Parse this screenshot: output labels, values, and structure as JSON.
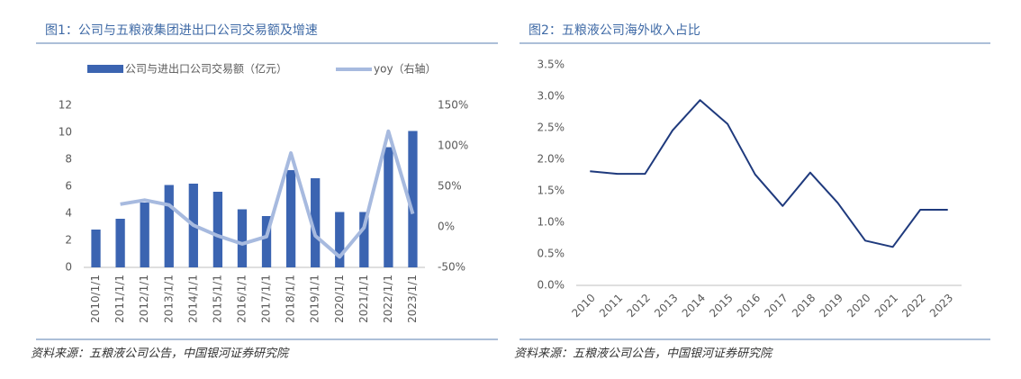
{
  "chart_data": [
    {
      "type": "bar",
      "title": "图1：公司与五粮液集团进出口公司交易额及增速",
      "categories": [
        "2010/1/1",
        "2011/1/1",
        "2012/1/1",
        "2013/1/1",
        "2014/1/1",
        "2015/1/1",
        "2016/1/1",
        "2017/1/1",
        "2018/1/1",
        "2019/1/1",
        "2020/1/1",
        "2021/1/1",
        "2022/1/1",
        "2023/1/1"
      ],
      "series": [
        {
          "name": "公司与进出口公司交易额（亿元）",
          "type": "bar",
          "color": "#3b64b1",
          "values": [
            2.8,
            3.6,
            4.8,
            6.1,
            6.2,
            5.6,
            4.3,
            3.8,
            7.2,
            6.6,
            4.1,
            4.1,
            8.9,
            10.1
          ]
        },
        {
          "name": "yoy（右轴）",
          "type": "line",
          "axis": "y2",
          "color": "#a7badf",
          "values": [
            null,
            28,
            33,
            27,
            2,
            -11,
            -21,
            -12,
            91,
            -11,
            -37,
            -1,
            118,
            16
          ]
        }
      ],
      "ylim": [
        0,
        12
      ],
      "yticks": [
        0,
        2,
        4,
        6,
        8,
        10,
        12
      ],
      "y2lim": [
        -50,
        150
      ],
      "y2ticks": [
        {
          "value": -50,
          "label": "-50%"
        },
        {
          "value": 0,
          "label": "0%"
        },
        {
          "value": 50,
          "label": "50%"
        },
        {
          "value": 100,
          "label": "100%"
        },
        {
          "value": 150,
          "label": "150%"
        }
      ],
      "source": "资料来源：五粮液公司公告，中国银河证券研究院"
    },
    {
      "type": "line",
      "title": "图2：五粮液公司海外收入占比",
      "categories": [
        "2010",
        "2011",
        "2012",
        "2013",
        "2014",
        "2015",
        "2016",
        "2017",
        "2018",
        "2019",
        "2020",
        "2021",
        "2022",
        "2023"
      ],
      "series": [
        {
          "type": "line",
          "color": "#1f3a7d",
          "values": [
            1.81,
            1.77,
            1.77,
            2.46,
            2.94,
            2.56,
            1.76,
            1.26,
            1.79,
            1.31,
            0.71,
            0.61,
            1.2,
            1.2
          ]
        }
      ],
      "ylim": [
        0,
        3.5
      ],
      "yticks": [
        {
          "value": 0,
          "label": "0.0%"
        },
        {
          "value": 0.5,
          "label": "0.5%"
        },
        {
          "value": 1,
          "label": "1.0%"
        },
        {
          "value": 1.5,
          "label": "1.5%"
        },
        {
          "value": 2,
          "label": "2.0%"
        },
        {
          "value": 2.5,
          "label": "2.5%"
        },
        {
          "value": 3,
          "label": "3.0%"
        },
        {
          "value": 3.5,
          "label": "3.5%"
        }
      ],
      "source": "资料来源：五粮液公司公告，中国银河证券研究院"
    }
  ]
}
